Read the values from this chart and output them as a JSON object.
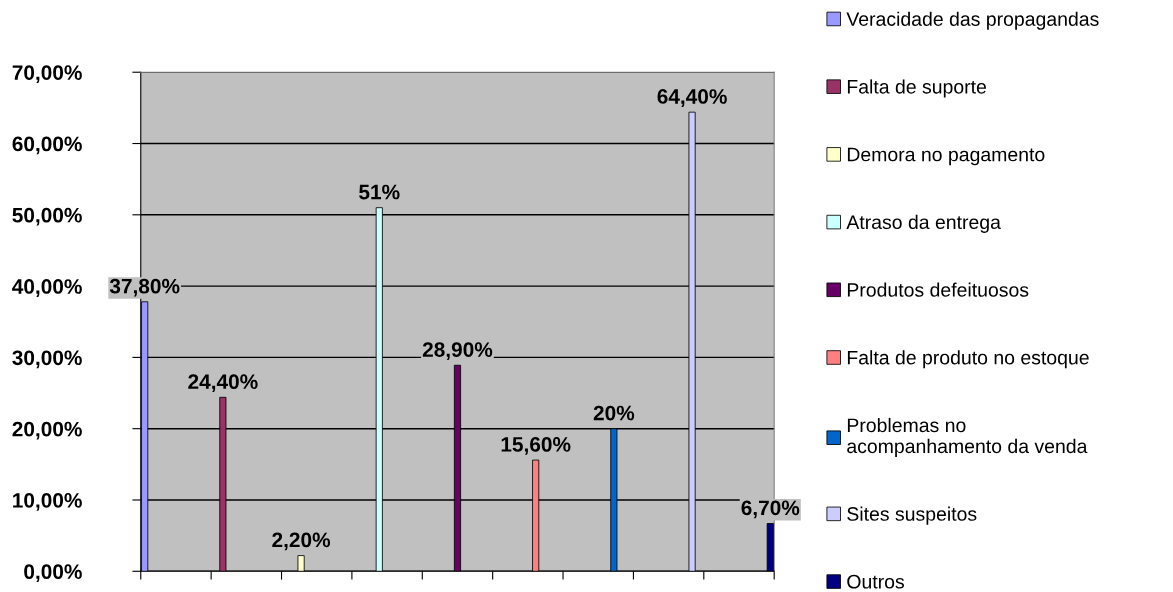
{
  "chart_data": {
    "type": "bar",
    "categories": [
      null,
      null,
      null,
      null,
      null,
      null,
      null,
      null,
      null
    ],
    "series": [
      {
        "name": "Veracidade das propagandas",
        "color": "#9999ff",
        "values": [
          37.8,
          null,
          null,
          null,
          null,
          null,
          null,
          null,
          null
        ],
        "value_labels": [
          "37,80%",
          null,
          null,
          null,
          null,
          null,
          null,
          null,
          null
        ]
      },
      {
        "name": "Falta de suporte",
        "color": "#993366",
        "values": [
          null,
          24.4,
          null,
          null,
          null,
          null,
          null,
          null,
          null
        ],
        "value_labels": [
          null,
          "24,40%",
          null,
          null,
          null,
          null,
          null,
          null,
          null
        ]
      },
      {
        "name": "Demora no pagamento",
        "color": "#ffffcc",
        "values": [
          null,
          null,
          2.2,
          null,
          null,
          null,
          null,
          null,
          null
        ],
        "value_labels": [
          null,
          null,
          "2,20%",
          null,
          null,
          null,
          null,
          null,
          null
        ]
      },
      {
        "name": "Atraso da entrega",
        "color": "#ccffff",
        "values": [
          null,
          null,
          null,
          51,
          null,
          null,
          null,
          null,
          null
        ],
        "value_labels": [
          null,
          null,
          null,
          "51%",
          null,
          null,
          null,
          null,
          null
        ]
      },
      {
        "name": "Produtos defeituosos",
        "color": "#660066",
        "values": [
          null,
          null,
          null,
          null,
          28.9,
          null,
          null,
          null,
          null
        ],
        "value_labels": [
          null,
          null,
          null,
          null,
          "28,90%",
          null,
          null,
          null,
          null
        ]
      },
      {
        "name": "Falta de produto no estoque",
        "color": "#ff8080",
        "values": [
          null,
          null,
          null,
          null,
          null,
          15.6,
          null,
          null,
          null
        ],
        "value_labels": [
          null,
          null,
          null,
          null,
          null,
          "15,60%",
          null,
          null,
          null
        ]
      },
      {
        "name": "Problemas no\nacompanhamento da venda",
        "color": "#0066cc",
        "values": [
          null,
          null,
          null,
          null,
          null,
          null,
          20,
          null,
          null
        ],
        "value_labels": [
          null,
          null,
          null,
          null,
          null,
          null,
          "20%",
          null,
          null
        ]
      },
      {
        "name": "Sites suspeitos",
        "color": "#ccccff",
        "values": [
          null,
          null,
          null,
          null,
          null,
          null,
          null,
          64.4,
          null
        ],
        "value_labels": [
          null,
          null,
          null,
          null,
          null,
          null,
          null,
          "64,40%",
          null
        ]
      },
      {
        "name": "Outros",
        "color": "#000080",
        "values": [
          null,
          null,
          null,
          null,
          null,
          null,
          null,
          null,
          6.7
        ],
        "value_labels": [
          null,
          null,
          null,
          null,
          null,
          null,
          null,
          null,
          "6,70%"
        ]
      }
    ],
    "ylim": [
      0,
      70
    ],
    "yticks": [
      {
        "value": 0,
        "label": "0,00%"
      },
      {
        "value": 10,
        "label": "10,00%"
      },
      {
        "value": 20,
        "label": "20,00%"
      },
      {
        "value": 30,
        "label": "30,00%"
      },
      {
        "value": 40,
        "label": "40,00%"
      },
      {
        "value": 50,
        "label": "50,00%"
      },
      {
        "value": 60,
        "label": "60,00%"
      },
      {
        "value": 70,
        "label": "70,00%"
      }
    ],
    "grid": "y",
    "legend": "right",
    "tick_labels": "y"
  }
}
